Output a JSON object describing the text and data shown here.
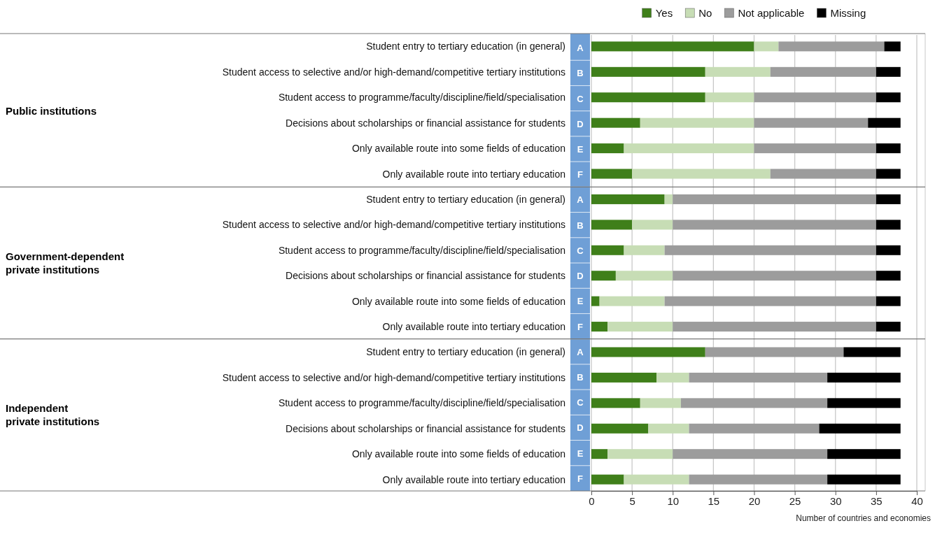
{
  "chart_data": {
    "type": "bar",
    "orientation": "horizontal",
    "stacked": true,
    "categories": [
      "Student entry to tertiary education (in general)",
      "Student access to selective and/or high-demand/competitive tertiary institutions",
      "Student access to programme/faculty/discipline/field/specialisation",
      "Decisions about scholarships or financial assistance for students",
      "Only available route into some fields of education",
      "Only available route into tertiary education",
      "Student entry to tertiary education (in general)",
      "Student access to selective and/or high-demand/competitive tertiary institutions",
      "Student access to programme/faculty/discipline/field/specialisation",
      "Decisions about scholarships or financial assistance for students",
      "Only available route into some fields of education",
      "Only available route into tertiary education",
      "Student entry to tertiary education (in general)",
      "Student access to selective and/or high-demand/competitive tertiary institutions",
      "Student access to programme/faculty/discipline/field/specialisation",
      "Decisions about scholarships or financial assistance for students",
      "Only available route into some fields of education",
      "Only available route into tertiary education"
    ],
    "series": [
      {
        "name": "Yes",
        "color": "#3f7f1a",
        "values": [
          20,
          14,
          14,
          6,
          4,
          5,
          9,
          5,
          4,
          3,
          1,
          2,
          14,
          8,
          6,
          7,
          2,
          4
        ]
      },
      {
        "name": "No",
        "color": "#c7ddb5",
        "values": [
          3,
          8,
          6,
          14,
          16,
          17,
          1,
          5,
          5,
          7,
          8,
          8,
          0,
          4,
          5,
          5,
          8,
          8
        ]
      },
      {
        "name": "Not applicable",
        "color": "#9c9c9c",
        "values": [
          13,
          13,
          15,
          14,
          15,
          13,
          25,
          25,
          26,
          25,
          26,
          25,
          17,
          17,
          18,
          16,
          19,
          17
        ]
      },
      {
        "name": "Missing",
        "color": "#000000",
        "values": [
          2,
          3,
          3,
          4,
          3,
          3,
          3,
          3,
          3,
          3,
          3,
          3,
          7,
          9,
          9,
          10,
          9,
          9
        ]
      }
    ],
    "xlim": [
      0,
      40
    ],
    "xticks": [
      0,
      5,
      10,
      15,
      20,
      25,
      30,
      35,
      40
    ],
    "xlabel": "Number of countries and economies",
    "annotations": [
      "Public institutions",
      "Government-dependent\nprivate institutions",
      "Independent\nprivate institutions",
      "A",
      "B",
      "C",
      "D",
      "E",
      "F",
      "A",
      "B",
      "C",
      "D",
      "E",
      "F",
      "A",
      "B",
      "C",
      "D",
      "E",
      "F"
    ],
    "grid": "x",
    "legend": "top"
  }
}
